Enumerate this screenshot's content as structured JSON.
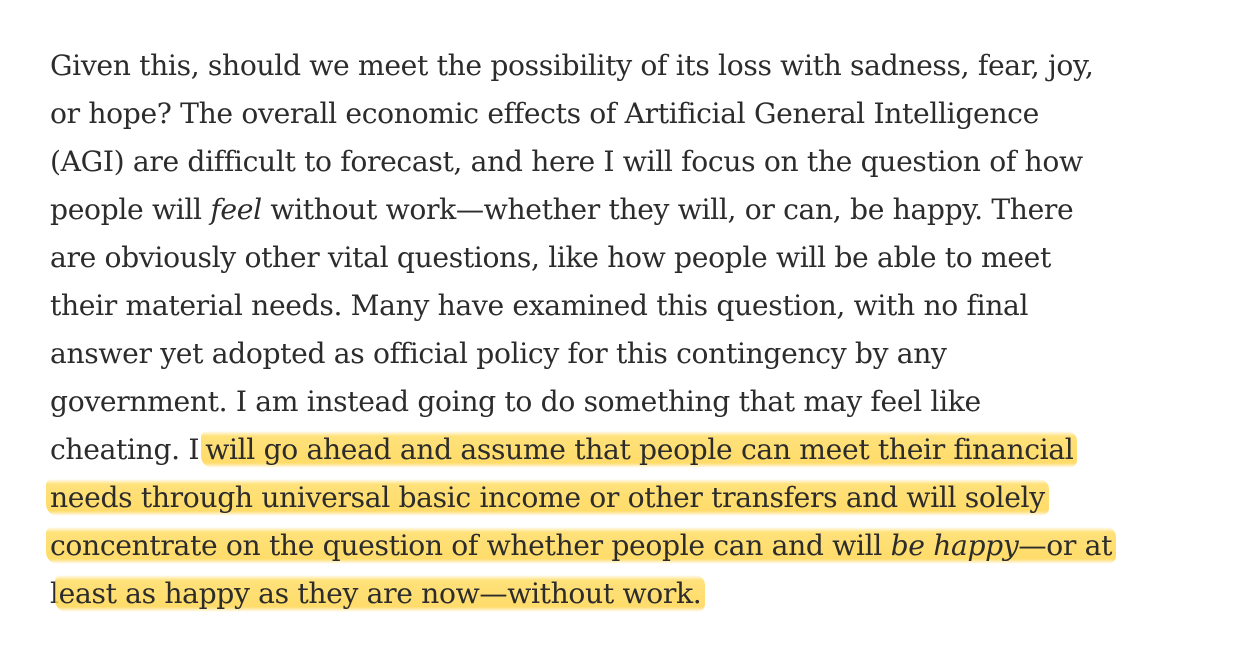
{
  "article": {
    "lines": [
      {
        "text": "Given this, should we meet the possibility of its loss with sadness, fear, joy,"
      },
      {
        "text": "or hope? The overall economic effects of Artificial General Intelligence"
      },
      {
        "text": "(AGI) are difficult to forecast, and here I will focus on the question of how"
      },
      {
        "before": "people will ",
        "emph": "feel",
        "after": " without work—whether they will, or can, be happy. There"
      },
      {
        "text": "are obviously other vital questions, like how people will be able to meet"
      },
      {
        "text": "their material needs. Many have examined this question, with no final"
      },
      {
        "text": "answer yet adopted as official policy for this contingency by any"
      },
      {
        "text": "government. I am instead going to do something that may feel like"
      },
      {
        "plain": "cheating. I",
        "highlighted": "will go ahead and assume that people can meet their financial"
      },
      {
        "highlighted": "needs through universal basic income or other transfers and will solely"
      },
      {
        "highlighted_before": "concentrate on the question of whether people can and will ",
        "highlighted_emph": "be happy",
        "highlighted_after": "—or at"
      },
      {
        "plain": "l",
        "highlighted": "east as happy as they are now—without work."
      }
    ]
  },
  "colors": {
    "text": "#2c2c2c",
    "highlight": "#ffd648",
    "background": "#ffffff"
  }
}
